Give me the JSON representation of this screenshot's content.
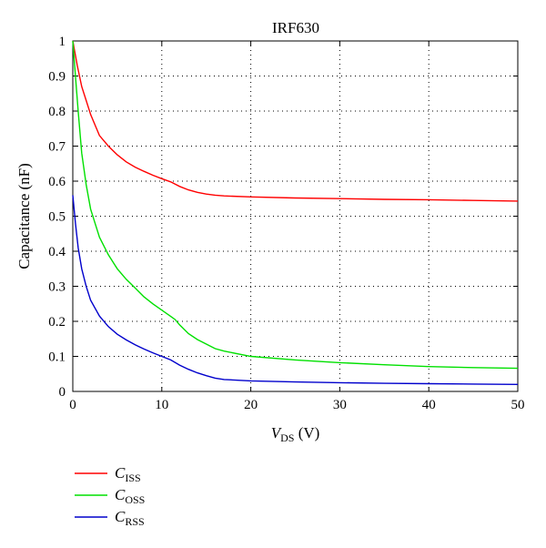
{
  "chart_data": {
    "type": "line",
    "title": "IRF630",
    "xlabel": {
      "var": "V",
      "sub": "DS",
      "unit": " (V)"
    },
    "ylabel": "Capacitance (nF)",
    "xlim": [
      0,
      50
    ],
    "ylim": [
      0,
      1
    ],
    "xticks": [
      0,
      10,
      20,
      30,
      40,
      50
    ],
    "yticks": [
      0,
      0.1,
      0.2,
      0.3,
      0.4,
      0.5,
      0.6,
      0.7,
      0.8,
      0.9,
      1
    ],
    "xtick_labels": [
      "0",
      "10",
      "20",
      "30",
      "40",
      "50"
    ],
    "ytick_labels": [
      "0",
      "0.1",
      "0.2",
      "0.3",
      "0.4",
      "0.5",
      "0.6",
      "0.7",
      "0.8",
      "0.9",
      "1"
    ],
    "grid": true,
    "legend_position": "below-left",
    "series": [
      {
        "name": "C_ISS",
        "label_main": "C",
        "label_sub": "ISS",
        "color": "#ff0000",
        "x": [
          0,
          0.5,
          1,
          1.5,
          2,
          3,
          4,
          5,
          6,
          7,
          8,
          9,
          10,
          11,
          12,
          13,
          14,
          15,
          16,
          17,
          20,
          25,
          30,
          35,
          40,
          45,
          50
        ],
        "y": [
          1.0,
          0.93,
          0.87,
          0.83,
          0.79,
          0.73,
          0.7,
          0.675,
          0.655,
          0.64,
          0.628,
          0.617,
          0.607,
          0.598,
          0.585,
          0.575,
          0.568,
          0.563,
          0.56,
          0.558,
          0.555,
          0.552,
          0.55,
          0.548,
          0.547,
          0.545,
          0.543
        ]
      },
      {
        "name": "C_OSS",
        "label_main": "C",
        "label_sub": "OSS",
        "color": "#00e000",
        "x": [
          0,
          0.3,
          0.6,
          1,
          1.5,
          2,
          3,
          4,
          5,
          6,
          7,
          8,
          9,
          10,
          11,
          11.5,
          12,
          13,
          14,
          15,
          16,
          17,
          20,
          25,
          30,
          35,
          40,
          45,
          50
        ],
        "y": [
          1.0,
          0.9,
          0.8,
          0.68,
          0.59,
          0.52,
          0.44,
          0.39,
          0.35,
          0.32,
          0.295,
          0.27,
          0.25,
          0.232,
          0.214,
          0.205,
          0.19,
          0.165,
          0.148,
          0.135,
          0.122,
          0.115,
          0.1,
          0.09,
          0.082,
          0.076,
          0.071,
          0.068,
          0.066
        ]
      },
      {
        "name": "C_RSS",
        "label_main": "C",
        "label_sub": "RSS",
        "color": "#0000cc",
        "x": [
          0,
          0.3,
          0.6,
          1,
          1.5,
          2,
          3,
          4,
          5,
          6,
          7,
          8,
          9,
          10,
          11,
          12,
          13,
          14,
          15,
          16,
          17,
          20,
          25,
          30,
          35,
          40,
          45,
          50
        ],
        "y": [
          0.56,
          0.48,
          0.41,
          0.35,
          0.3,
          0.26,
          0.215,
          0.185,
          0.163,
          0.147,
          0.133,
          0.121,
          0.11,
          0.1,
          0.09,
          0.075,
          0.063,
          0.053,
          0.045,
          0.038,
          0.034,
          0.03,
          0.027,
          0.025,
          0.023,
          0.022,
          0.021,
          0.02
        ]
      }
    ]
  }
}
